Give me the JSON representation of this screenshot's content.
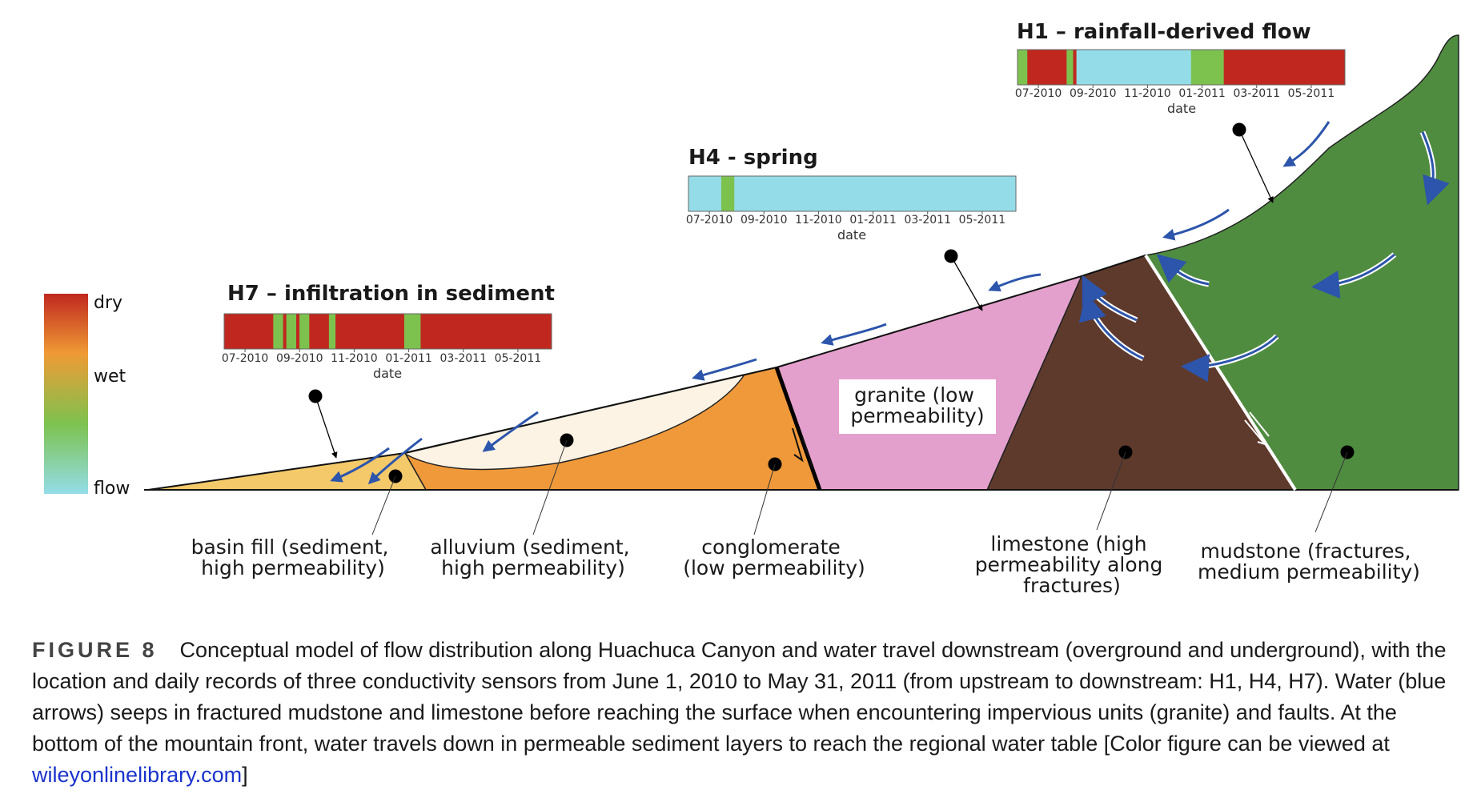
{
  "colors": {
    "dry": "#c0281f",
    "wet_orange": "#ef9b35",
    "wet_green": "#7dc24f",
    "flow": "#94dde8",
    "basin_fill": "#f4c96a",
    "alluvium": "#f0993a",
    "alluvium_lens": "#fcf3e4",
    "conglomerate": "#f0993a",
    "granite": "#e4a0cc",
    "limestone": "#5e3a2c",
    "mudstone": "#4f8c40",
    "arrow": "#2c55ab"
  },
  "legend": {
    "dry": "dry",
    "wet": "wet",
    "flow": "flow"
  },
  "strips": {
    "h1": {
      "title": "H1 – rainfall-derived flow",
      "ticks": [
        "07-2010",
        "09-2010",
        "11-2010",
        "01-2011",
        "03-2011",
        "05-2011"
      ],
      "axis_title": "date",
      "segments": [
        {
          "state": "wet",
          "frac": 0.03
        },
        {
          "state": "dry",
          "frac": 0.12
        },
        {
          "state": "wet",
          "frac": 0.02
        },
        {
          "state": "dry",
          "frac": 0.01
        },
        {
          "state": "flow",
          "frac": 0.35
        },
        {
          "state": "wet",
          "frac": 0.1
        },
        {
          "state": "dry",
          "frac": 0.37
        }
      ]
    },
    "h4": {
      "title": "H4 - spring",
      "ticks": [
        "07-2010",
        "09-2010",
        "11-2010",
        "01-2011",
        "03-2011",
        "05-2011"
      ],
      "axis_title": "date",
      "segments": [
        {
          "state": "flow",
          "frac": 0.1
        },
        {
          "state": "wet",
          "frac": 0.04
        },
        {
          "state": "flow",
          "frac": 0.86
        }
      ]
    },
    "h7": {
      "title": "H7 – infiltration in sediment",
      "ticks": [
        "07-2010",
        "09-2010",
        "11-2010",
        "01-2011",
        "03-2011",
        "05-2011"
      ],
      "axis_title": "date",
      "segments": [
        {
          "state": "dry",
          "frac": 0.15
        },
        {
          "state": "wet",
          "frac": 0.03
        },
        {
          "state": "dry",
          "frac": 0.01
        },
        {
          "state": "wet",
          "frac": 0.03
        },
        {
          "state": "dry",
          "frac": 0.01
        },
        {
          "state": "wet",
          "frac": 0.03
        },
        {
          "state": "dry",
          "frac": 0.06
        },
        {
          "state": "wet",
          "frac": 0.02
        },
        {
          "state": "dry",
          "frac": 0.21
        },
        {
          "state": "wet",
          "frac": 0.05
        },
        {
          "state": "dry",
          "frac": 0.4
        }
      ]
    }
  },
  "units": {
    "basin_fill": [
      "basin fill (sediment,",
      "high permeability)"
    ],
    "alluvium": [
      "alluvium (sediment,",
      "high permeability)"
    ],
    "conglomerate": [
      "conglomerate",
      "(low permeability)"
    ],
    "granite": [
      "granite (low",
      "permeability)"
    ],
    "limestone": [
      "limestone (high",
      "permeability along",
      "fractures)"
    ],
    "mudstone": [
      "mudstone (fractures,",
      "medium permeability)"
    ]
  },
  "caption": {
    "label": "FIGURE 8",
    "text": "Conceptual model of flow distribution along Huachuca Canyon and water travel downstream (overground and underground), with the location and daily records of three conductivity sensors from June 1, 2010 to May 31, 2011 (from upstream to downstream: H1, H4, H7). Water (blue arrows) seeps in fractured mudstone and limestone before reaching the surface when encountering impervious units (granite) and faults. At the bottom of the mountain front, water travels down in permeable sediment layers to reach the regional water table [Color figure can be viewed at ",
    "link": "wileyonlinelibrary.com",
    "end": "]"
  }
}
